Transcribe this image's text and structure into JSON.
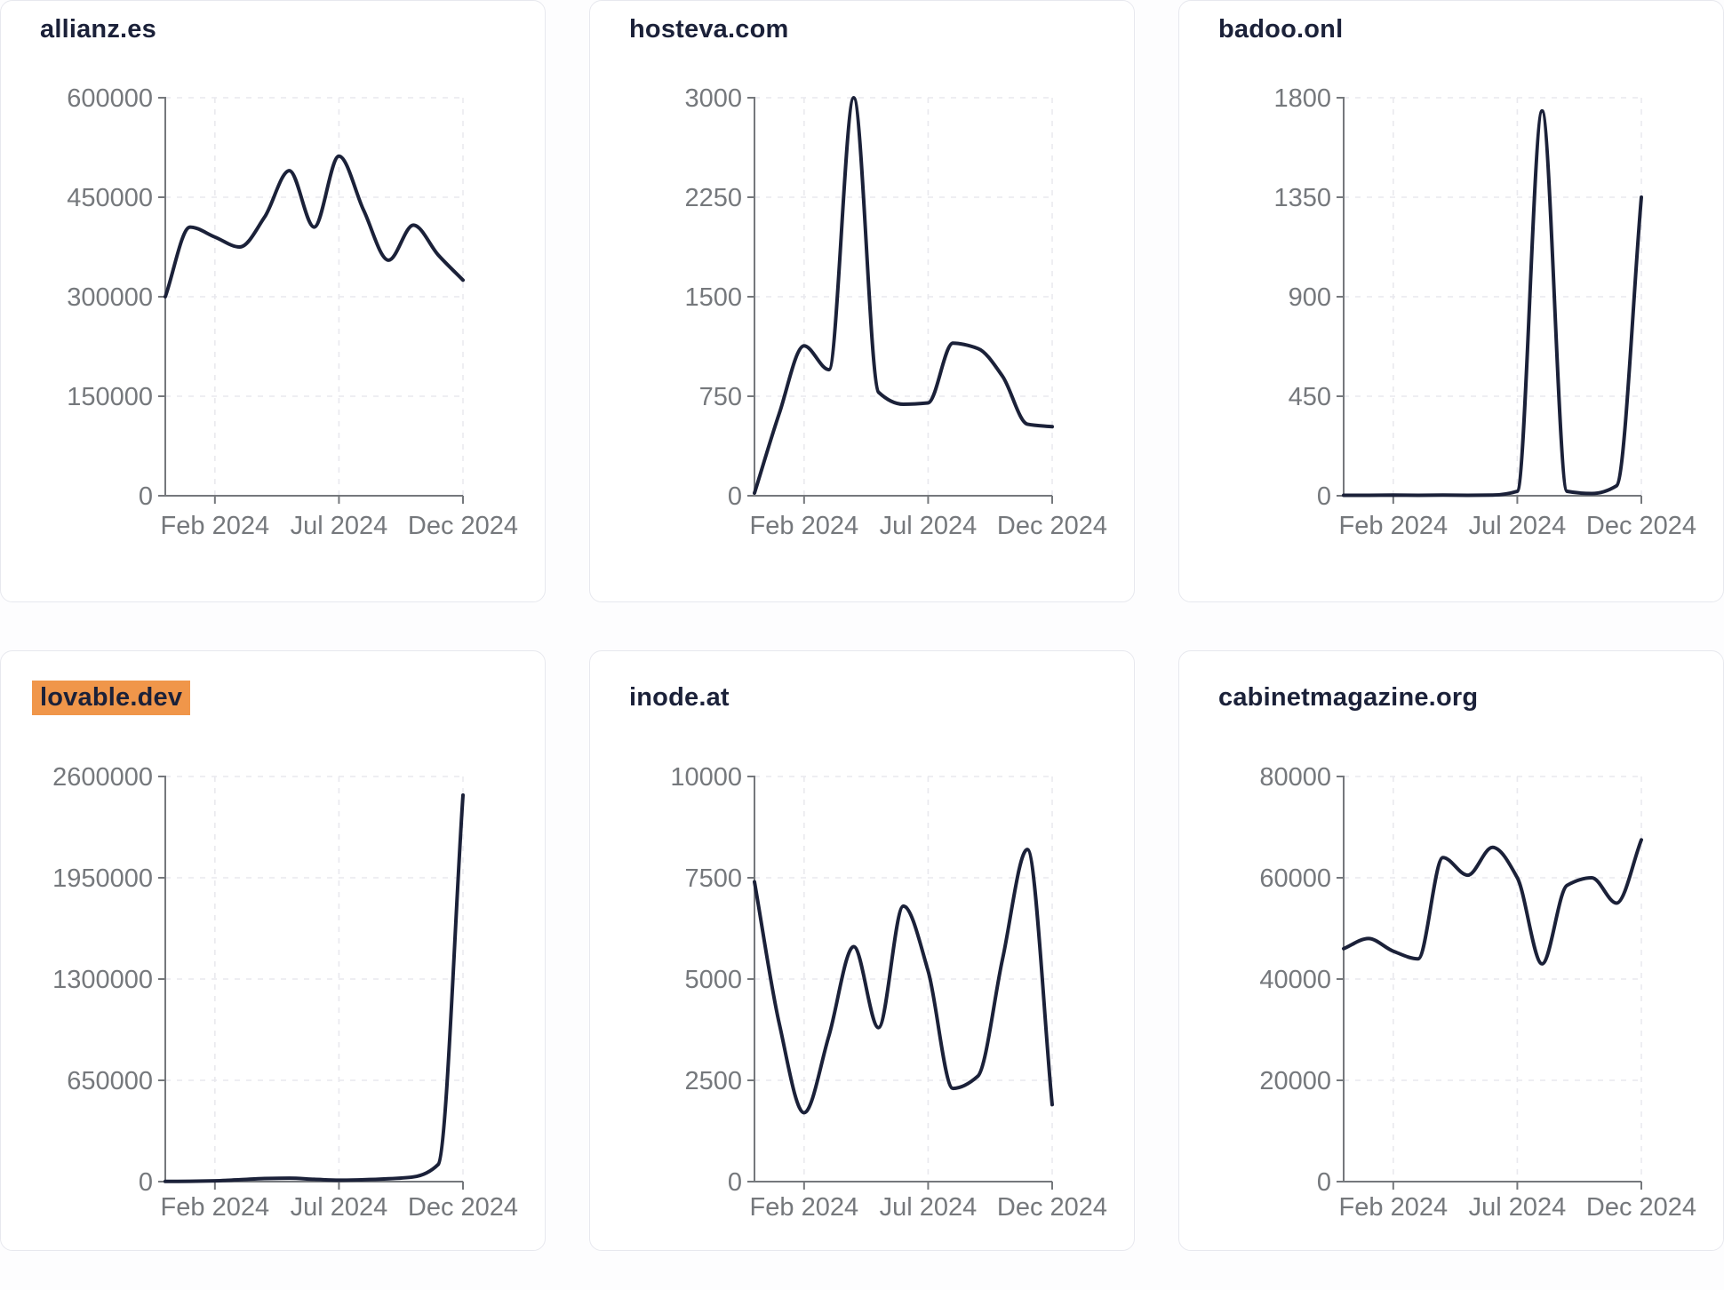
{
  "page": {
    "description": "Website traffic dashboard: grid of six monthly-visits sparkline charts",
    "highlighted_chart": "lovable.dev"
  },
  "theme": {
    "line_color": "#1b2139",
    "title_color": "#1b2139",
    "highlight_color": "#f0964a",
    "tick_label_color": "#75787c",
    "axis_color": "#75787c",
    "grid_color": "#e9e9ee",
    "card_border_color": "#e7e8ee",
    "card_background": "#ffffff"
  },
  "x_axis": {
    "tick_labels": [
      "Feb 2024",
      "Jul 2024",
      "Dec 2024"
    ],
    "tick_dates": [
      "2024-02",
      "2024-07",
      "2024-12"
    ]
  },
  "chart_data": [
    {
      "type": "line",
      "title": "allianz.es",
      "highlighted": false,
      "ylim": [
        0,
        600000
      ],
      "y_ticks": [
        0,
        150000,
        300000,
        450000,
        600000
      ],
      "x": [
        "2023-12",
        "2024-01",
        "2024-02",
        "2024-03",
        "2024-04",
        "2024-05",
        "2024-06",
        "2024-07",
        "2024-08",
        "2024-09",
        "2024-10",
        "2024-11",
        "2024-12"
      ],
      "values": [
        300000,
        405000,
        390000,
        375000,
        420000,
        490000,
        405000,
        512000,
        430000,
        355000,
        408000,
        363000,
        325000
      ]
    },
    {
      "type": "line",
      "title": "hosteva.com",
      "highlighted": false,
      "ylim": [
        0,
        3000
      ],
      "y_ticks": [
        0,
        750,
        1500,
        2250,
        3000
      ],
      "x": [
        "2023-12",
        "2024-01",
        "2024-02",
        "2024-03",
        "2024-04",
        "2024-05",
        "2024-06",
        "2024-07",
        "2024-08",
        "2024-09",
        "2024-10",
        "2024-11",
        "2024-12"
      ],
      "values": [
        20,
        620,
        1130,
        950,
        3000,
        780,
        690,
        700,
        1150,
        1110,
        900,
        540,
        520
      ]
    },
    {
      "type": "line",
      "title": "badoo.onl",
      "highlighted": false,
      "ylim": [
        0,
        1800
      ],
      "y_ticks": [
        0,
        450,
        900,
        1350,
        1800
      ],
      "x": [
        "2023-12",
        "2024-01",
        "2024-02",
        "2024-03",
        "2024-04",
        "2024-05",
        "2024-06",
        "2024-07",
        "2024-08",
        "2024-09",
        "2024-10",
        "2024-11",
        "2024-12"
      ],
      "values": [
        2,
        2,
        3,
        2,
        3,
        2,
        3,
        20,
        1740,
        20,
        10,
        45,
        1350
      ]
    },
    {
      "type": "line",
      "title": "lovable.dev",
      "highlighted": true,
      "ylim": [
        0,
        2600000
      ],
      "y_ticks": [
        0,
        650000,
        1300000,
        1950000,
        2600000
      ],
      "x": [
        "2023-12",
        "2024-01",
        "2024-02",
        "2024-03",
        "2024-04",
        "2024-05",
        "2024-06",
        "2024-07",
        "2024-08",
        "2024-09",
        "2024-10",
        "2024-11",
        "2024-12"
      ],
      "values": [
        1000,
        2500,
        5000,
        12000,
        20000,
        22000,
        15000,
        9000,
        12000,
        18000,
        30000,
        110000,
        2480000
      ]
    },
    {
      "type": "line",
      "title": "inode.at",
      "highlighted": false,
      "ylim": [
        0,
        10000
      ],
      "y_ticks": [
        0,
        2500,
        5000,
        7500,
        10000
      ],
      "x": [
        "2023-12",
        "2024-01",
        "2024-02",
        "2024-03",
        "2024-04",
        "2024-05",
        "2024-06",
        "2024-07",
        "2024-08",
        "2024-09",
        "2024-10",
        "2024-11",
        "2024-12"
      ],
      "values": [
        7400,
        3900,
        1700,
        3600,
        5800,
        3800,
        6800,
        5200,
        2300,
        2600,
        5500,
        8200,
        1900
      ]
    },
    {
      "type": "line",
      "title": "cabinetmagazine.org",
      "highlighted": false,
      "ylim": [
        0,
        80000
      ],
      "y_ticks": [
        0,
        20000,
        40000,
        60000,
        80000
      ],
      "x": [
        "2023-12",
        "2024-01",
        "2024-02",
        "2024-03",
        "2024-04",
        "2024-05",
        "2024-06",
        "2024-07",
        "2024-08",
        "2024-09",
        "2024-10",
        "2024-11",
        "2024-12"
      ],
      "values": [
        46000,
        48000,
        45500,
        44000,
        64000,
        60500,
        66000,
        60000,
        43000,
        58500,
        60000,
        55000,
        67500
      ]
    }
  ]
}
